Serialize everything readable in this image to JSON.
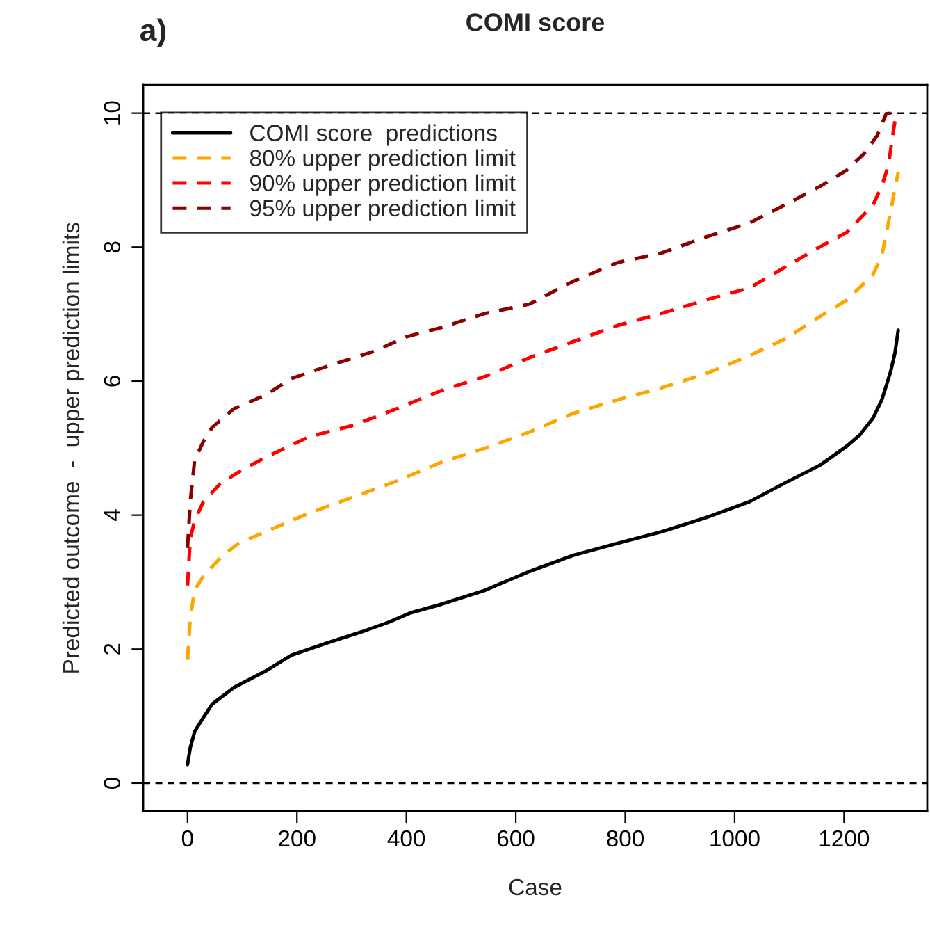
{
  "chart_data": {
    "type": "line",
    "title": "COMI score",
    "xlabel": "Case",
    "ylabel": "Predicted outcome  -  upper prediction limits",
    "annotations": [
      "a)"
    ],
    "xlim": [
      -81,
      1352
    ],
    "ylim": [
      -0.42,
      10.42
    ],
    "xticks": [
      0,
      200,
      400,
      600,
      800,
      1000,
      1200
    ],
    "yticks": [
      0,
      2,
      4,
      6,
      8,
      10
    ],
    "grid": false,
    "legend": "top left",
    "ref_lines": [
      {
        "axis": "y",
        "value": 0,
        "color": "#000000",
        "line_style": "dashed"
      },
      {
        "axis": "y",
        "value": 10,
        "color": "#000000",
        "line_style": "dashed"
      }
    ],
    "series": [
      {
        "name": "COMI score  predictions",
        "color": "#000000",
        "line_style": "solid",
        "x": [
          0,
          5,
          13,
          29,
          45,
          85,
          142,
          190,
          254,
          319,
          367,
          407,
          464,
          544,
          625,
          705,
          786,
          866,
          947,
          1027,
          1092,
          1157,
          1205,
          1229,
          1253,
          1269,
          1285,
          1293,
          1299
        ],
        "values": [
          0.28,
          0.53,
          0.77,
          0.98,
          1.18,
          1.43,
          1.67,
          1.91,
          2.09,
          2.26,
          2.4,
          2.54,
          2.67,
          2.88,
          3.16,
          3.4,
          3.58,
          3.75,
          3.96,
          4.2,
          4.48,
          4.75,
          5.03,
          5.2,
          5.45,
          5.72,
          6.14,
          6.42,
          6.76
        ]
      },
      {
        "name": "80% upper prediction limit",
        "color": "#ffa500",
        "line_style": "dashed",
        "x": [
          0,
          5,
          13,
          29,
          61,
          93,
          142,
          222,
          303,
          383,
          464,
          544,
          625,
          705,
          786,
          866,
          947,
          1027,
          1092,
          1157,
          1205,
          1253,
          1269,
          1281,
          1289,
          1299
        ],
        "values": [
          1.84,
          2.47,
          2.88,
          3.09,
          3.37,
          3.58,
          3.75,
          4.03,
          4.27,
          4.51,
          4.79,
          5.0,
          5.24,
          5.52,
          5.72,
          5.9,
          6.11,
          6.38,
          6.63,
          6.97,
          7.21,
          7.59,
          7.87,
          8.36,
          8.7,
          9.12
        ]
      },
      {
        "name": "90% upper prediction limit",
        "color": "#ff0000",
        "line_style": "dashed",
        "x": [
          0,
          5,
          13,
          29,
          61,
          101,
          142,
          222,
          303,
          383,
          464,
          544,
          625,
          705,
          786,
          866,
          947,
          1027,
          1092,
          1157,
          1205,
          1253,
          1269,
          1281,
          1289,
          1293
        ],
        "values": [
          2.95,
          3.65,
          3.92,
          4.2,
          4.48,
          4.68,
          4.86,
          5.17,
          5.34,
          5.59,
          5.86,
          6.07,
          6.35,
          6.59,
          6.83,
          7.01,
          7.21,
          7.39,
          7.7,
          8.01,
          8.22,
          8.63,
          8.91,
          9.22,
          9.67,
          9.88
        ]
      },
      {
        "name": "95% upper prediction limit",
        "color": "#8b0000",
        "line_style": "dashed",
        "x": [
          0,
          5,
          13,
          29,
          45,
          85,
          142,
          190,
          262,
          343,
          399,
          464,
          544,
          625,
          705,
          786,
          866,
          947,
          1027,
          1092,
          1157,
          1205,
          1237,
          1261,
          1277,
          1289
        ],
        "values": [
          3.51,
          4.2,
          4.82,
          5.1,
          5.31,
          5.59,
          5.79,
          6.04,
          6.24,
          6.45,
          6.66,
          6.8,
          7.01,
          7.15,
          7.49,
          7.77,
          7.91,
          8.15,
          8.36,
          8.63,
          8.91,
          9.15,
          9.4,
          9.67,
          9.99,
          10.0
        ]
      }
    ]
  }
}
